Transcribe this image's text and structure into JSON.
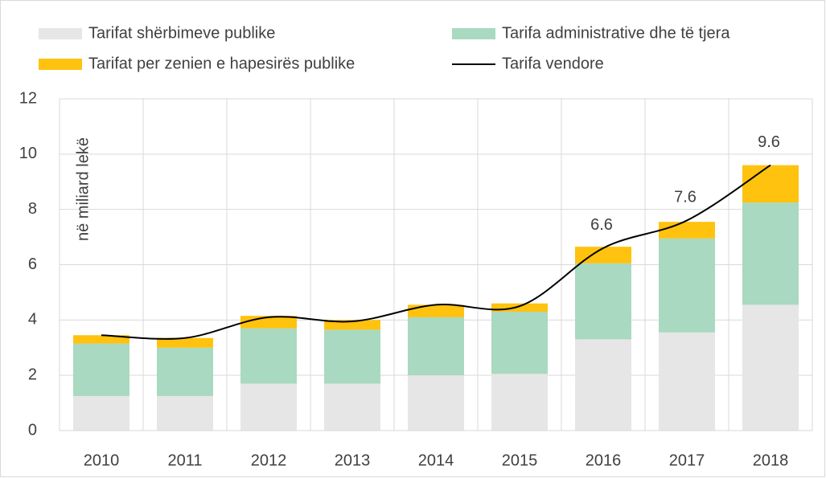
{
  "chart_data": {
    "type": "bar",
    "y_label": "në miliard lekë",
    "categories": [
      "2010",
      "2011",
      "2012",
      "2013",
      "2014",
      "2015",
      "2016",
      "2017",
      "2018"
    ],
    "series": [
      {
        "name": "Tarifat shërbimeve publike",
        "color": "#e7e6e6",
        "values": [
          1.25,
          1.25,
          1.7,
          1.7,
          2.0,
          2.05,
          3.3,
          3.55,
          4.55
        ]
      },
      {
        "name": "Tarifa administrative dhe të tjera",
        "color": "#a9d9c0",
        "values": [
          1.9,
          1.75,
          2.0,
          1.95,
          2.1,
          2.25,
          2.75,
          3.4,
          3.7
        ]
      },
      {
        "name": "Tarifat per zenien e hapesirës publike",
        "color": "#ffc20e",
        "values": [
          0.3,
          0.35,
          0.45,
          0.35,
          0.45,
          0.3,
          0.6,
          0.6,
          1.35
        ]
      },
      {
        "name": "Tarifa vendore",
        "type": "line",
        "color": "#000000",
        "values": [
          3.45,
          3.35,
          4.1,
          3.95,
          4.55,
          4.5,
          6.6,
          7.6,
          9.6
        ],
        "value_labels": [
          null,
          null,
          null,
          null,
          null,
          null,
          "6.6",
          "7.6",
          "9.6"
        ]
      }
    ],
    "stacked": true,
    "ylim": [
      0,
      12
    ],
    "yticks": [
      0,
      2,
      4,
      6,
      8,
      10,
      12
    ],
    "grid": true
  }
}
